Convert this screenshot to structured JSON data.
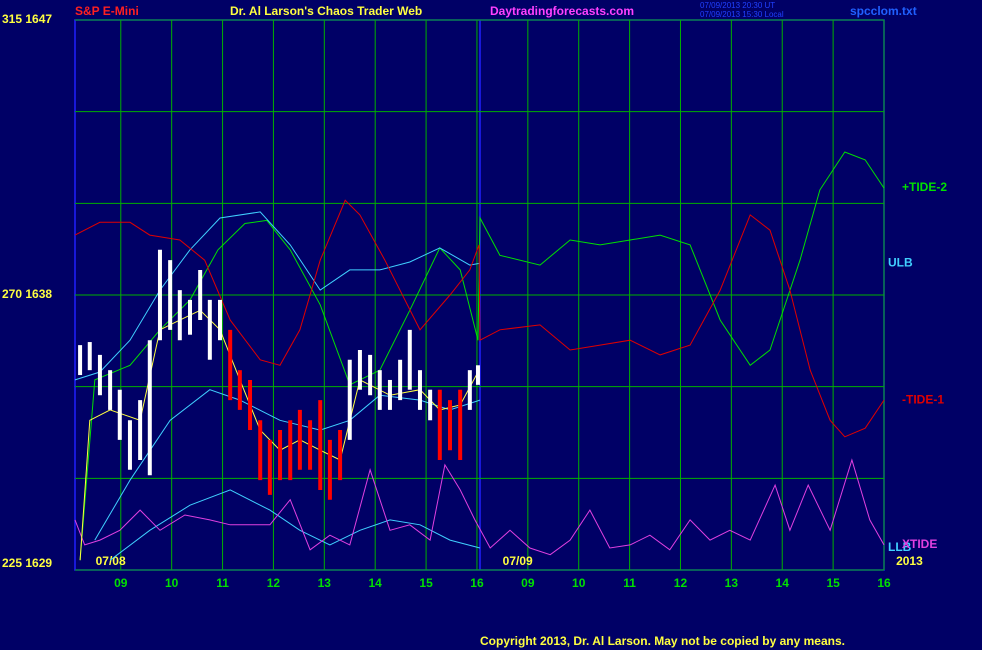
{
  "chart_data": {
    "type": "line",
    "header": {
      "instrument": "S&P E-Mini",
      "title": "Dr. Al Larson's Chaos Trader Web",
      "site": "Daytradingforecasts.com",
      "time_ut": "07/09/2013 20:30 UT",
      "time_local": "07/09/2013 15:30 Local",
      "file": "spcclom.txt"
    },
    "footer": "Copyright 2013, Dr. Al Larson. May not be copied by any means.",
    "date_labels": [
      {
        "x": 0.8,
        "label": "07/08"
      },
      {
        "x": 8.8,
        "label": "07/09"
      },
      {
        "x": 16.5,
        "label": "2013"
      }
    ],
    "xlim": [
      0.1,
      16.0
    ],
    "ylim": [
      225,
      315
    ],
    "xticks": [
      {
        "value": 1,
        "label": "09"
      },
      {
        "value": 2,
        "label": "10"
      },
      {
        "value": 3,
        "label": "11"
      },
      {
        "value": 4,
        "label": "12"
      },
      {
        "value": 5,
        "label": "13"
      },
      {
        "value": 6,
        "label": "14"
      },
      {
        "value": 7,
        "label": "15"
      },
      {
        "value": 8,
        "label": "16"
      },
      {
        "value": 9,
        "label": "09"
      },
      {
        "value": 10,
        "label": "10"
      },
      {
        "value": 11,
        "label": "11"
      },
      {
        "value": 12,
        "label": "12"
      },
      {
        "value": 13,
        "label": "13"
      },
      {
        "value": 14,
        "label": "14"
      },
      {
        "value": 15,
        "label": "15"
      },
      {
        "value": 16,
        "label": "16"
      }
    ],
    "yticks": [
      {
        "value": 315,
        "label": "315  1647"
      },
      {
        "value": 270,
        "label": "270  1638"
      },
      {
        "value": 225,
        "label": "225  1629"
      }
    ],
    "ygrid": [
      240,
      255,
      285,
      300
    ],
    "grid": true,
    "series": [
      {
        "name": "+TIDE-2",
        "color": "#00e000",
        "x": [
          0.2,
          0.49,
          1.18,
          1.77,
          2.36,
          2.91,
          3.44,
          3.87,
          4.33,
          4.92,
          5.5,
          6.09,
          6.68,
          7.27,
          7.67,
          8.02,
          8.06,
          8.45,
          9.24,
          9.83,
          10.42,
          11.01,
          11.6,
          12.19,
          12.78,
          13.37,
          13.76,
          14.35,
          14.74,
          15.23,
          15.63,
          16.0
        ],
        "values": [
          226.6,
          256.1,
          258.5,
          264.3,
          269.2,
          277.4,
          281.7,
          282.2,
          277.4,
          268.4,
          255.3,
          257.7,
          267.5,
          277.7,
          274.1,
          262.6,
          282.6,
          276.5,
          274.9,
          279,
          278.2,
          279,
          279.8,
          278.2,
          265.9,
          258.5,
          261,
          275.7,
          287.2,
          293.4,
          292.1,
          287.5
        ]
      },
      {
        "name": "ULB",
        "color": "#40d0ff",
        "x": [
          0.1,
          0.59,
          1.18,
          1.77,
          2.36,
          2.95,
          3.74,
          4.33,
          4.92,
          5.5,
          6.09,
          6.68,
          7.27,
          7.86,
          8.06
        ],
        "values": [
          256.1,
          257.4,
          262.6,
          270.8,
          277.4,
          282.6,
          283.6,
          278.2,
          270.8,
          274.1,
          274.1,
          275.4,
          277.7,
          274.9,
          275.2
        ]
      },
      {
        "name": "-TIDE-1",
        "color": "#e00000",
        "x": [
          0.1,
          0.59,
          1.18,
          1.57,
          2.16,
          2.65,
          3.15,
          3.74,
          4.13,
          4.52,
          4.92,
          5.41,
          5.7,
          6.19,
          6.88,
          7.47,
          7.86,
          8.04,
          8.06,
          8.45,
          9.24,
          9.83,
          10.42,
          11.01,
          11.6,
          12.19,
          12.78,
          13.37,
          13.76,
          14.15,
          14.55,
          14.94,
          15.23,
          15.63,
          16.0
        ],
        "values": [
          279.8,
          281.9,
          281.9,
          279.8,
          279,
          275.7,
          265.9,
          259.4,
          258.5,
          264.3,
          275.7,
          285.5,
          283.1,
          275.7,
          264.3,
          270,
          274.1,
          278.2,
          262.6,
          264.3,
          265.1,
          261,
          261.8,
          262.6,
          260.2,
          261.8,
          270.8,
          283.1,
          280.6,
          270.8,
          257.7,
          249.5,
          246.8,
          248.2,
          252.8
        ]
      },
      {
        "name": "LLB",
        "color": "#40d0ff",
        "x": [
          0.79,
          1.57,
          2.36,
          3.15,
          3.93,
          4.52,
          5.11,
          5.7,
          6.29,
          6.88,
          7.47,
          8.06
        ],
        "values": [
          226.6,
          231.5,
          235.6,
          238.1,
          234.8,
          231.5,
          229.1,
          231.5,
          233.2,
          232.4,
          229.9,
          228.6
        ]
      },
      {
        "name": "XTIDE",
        "color": "#e040e0",
        "x": [
          0.1,
          0.29,
          0.59,
          0.98,
          1.38,
          1.77,
          2.26,
          2.75,
          3.15,
          3.54,
          3.93,
          4.33,
          4.72,
          5.11,
          5.5,
          5.9,
          6.29,
          6.68,
          7.08,
          7.37,
          7.67,
          7.96,
          8.26,
          8.65,
          9.04,
          9.44,
          9.83,
          10.22,
          10.61,
          11.01,
          11.4,
          11.79,
          12.19,
          12.58,
          12.97,
          13.37,
          13.86,
          14.15,
          14.51,
          14.94,
          15.37,
          15.72,
          16.0
        ],
        "values": [
          233.2,
          229.1,
          229.9,
          231.5,
          234.8,
          231.5,
          234.0,
          233.2,
          232.4,
          232.4,
          232.4,
          236.5,
          228.3,
          230.7,
          229.1,
          241.4,
          231.5,
          232.4,
          229.9,
          242.2,
          238.1,
          233.2,
          228.6,
          231.5,
          228.6,
          227.5,
          229.9,
          234.8,
          228.6,
          229.1,
          230.7,
          228.3,
          233.2,
          229.9,
          231.5,
          229.9,
          238.9,
          231.5,
          238.9,
          231.5,
          243.0,
          233.2,
          229.1
        ]
      },
      {
        "color": "#40d0ff",
        "x": [
          0.49,
          1.18,
          1.97,
          2.75,
          3.34,
          4.13,
          4.92,
          5.5,
          6.09,
          6.88,
          7.47,
          8.06
        ],
        "values": [
          229.9,
          239.7,
          249.5,
          254.5,
          252.8,
          249.5,
          247.9,
          249.5,
          253.6,
          252.8,
          251.2,
          252.8
        ]
      },
      {
        "color": "#ffff40",
        "x": [
          0.2,
          0.39,
          0.79,
          1.38,
          1.77,
          2.16,
          2.56,
          2.95,
          3.34,
          3.74,
          4.13,
          4.52,
          4.92,
          5.31,
          5.7,
          6.29,
          6.88,
          7.27,
          7.67,
          8.02
        ],
        "values": [
          226.6,
          249.5,
          251.2,
          249.5,
          264.3,
          265.9,
          267.5,
          264.3,
          256.1,
          247.9,
          244.6,
          246.3,
          244.6,
          243.0,
          256.1,
          253.6,
          254.5,
          251.2,
          252.0,
          257.4
        ]
      }
    ],
    "bars": {
      "x": [
        0.2,
        0.39,
        0.59,
        0.79,
        0.98,
        1.18,
        1.38,
        1.57,
        1.77,
        1.97,
        2.16,
        2.36,
        2.56,
        2.75,
        2.95,
        3.15,
        3.34,
        3.54,
        3.74,
        3.93,
        4.13,
        4.33,
        4.52,
        4.72,
        4.92,
        5.11,
        5.31,
        5.5,
        5.7,
        5.9,
        6.09,
        6.29,
        6.49,
        6.68,
        6.88,
        7.08,
        7.27,
        7.47,
        7.67,
        7.86,
        8.02
      ],
      "highs": [
        261.8,
        262.3,
        260.2,
        257.7,
        254.5,
        249.5,
        252.8,
        262.6,
        277.4,
        275.7,
        270.8,
        269.2,
        274.1,
        269.2,
        269.2,
        264.3,
        257.7,
        256.1,
        249.5,
        246.3,
        247.9,
        249.5,
        251.2,
        249.5,
        252.8,
        246.3,
        247.9,
        259.4,
        261.0,
        260.2,
        257.7,
        256.1,
        259.4,
        264.3,
        257.7,
        254.5,
        254.5,
        252.8,
        254.5,
        257.7,
        258.5
      ],
      "lows": [
        256.9,
        257.7,
        253.6,
        251.2,
        246.3,
        241.4,
        243.0,
        240.5,
        262.6,
        264.3,
        262.6,
        263.5,
        265.9,
        259.4,
        262.6,
        252.8,
        251.2,
        247.9,
        239.7,
        237.3,
        239.7,
        239.7,
        241.4,
        241.4,
        238.1,
        236.5,
        239.7,
        246.3,
        254.5,
        253.6,
        251.2,
        251.2,
        252.8,
        254.5,
        251.2,
        249.5,
        243.0,
        244.6,
        243.0,
        251.2,
        255.3
      ],
      "colors": [
        "#ffffff",
        "#ffffff",
        "#ffffff",
        "#ffffff",
        "#ffffff",
        "#ffffff",
        "#ffffff",
        "#ffffff",
        "#ffffff",
        "#ffffff",
        "#ffffff",
        "#ffffff",
        "#ffffff",
        "#ffffff",
        "#ffffff",
        "#ff0000",
        "#ff0000",
        "#ff0000",
        "#ff0000",
        "#ff0000",
        "#ff0000",
        "#ff0000",
        "#ff0000",
        "#ff0000",
        "#ff0000",
        "#ff0000",
        "#ff0000",
        "#ffffff",
        "#ffffff",
        "#ffffff",
        "#ffffff",
        "#ffffff",
        "#ffffff",
        "#ffffff",
        "#ffffff",
        "#ffffff",
        "#ff0000",
        "#ff0000",
        "#ff0000",
        "#ffffff",
        "#ffffff"
      ]
    }
  }
}
